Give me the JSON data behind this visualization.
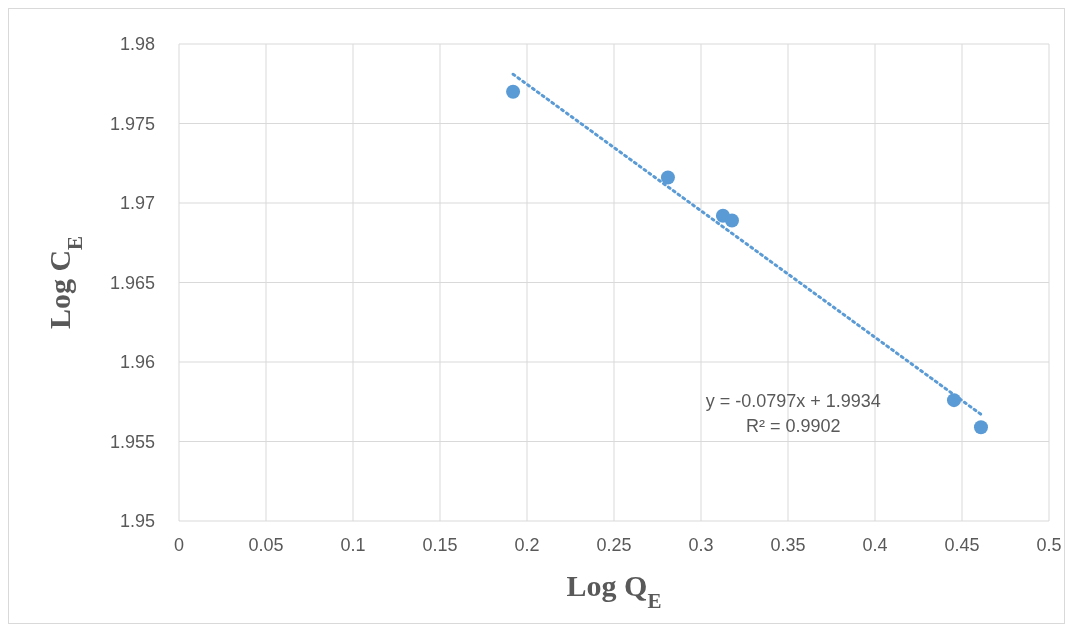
{
  "chart_data": {
    "type": "scatter",
    "xlabel": "Log Q$_{E}$",
    "ylabel": "Log C$_{E}$",
    "xlim": [
      0,
      0.5
    ],
    "xticks": [
      0,
      0.05,
      0.1,
      0.15,
      0.2,
      0.25,
      0.3,
      0.35,
      0.4,
      0.45,
      0.5
    ],
    "ylim": [
      1.95,
      1.98
    ],
    "yticks": [
      1.95,
      1.955,
      1.96,
      1.965,
      1.97,
      1.975,
      1.98
    ],
    "grid": true,
    "series": [
      {
        "color": "#5b9bd5",
        "marker": "circle",
        "x": [
          0.192,
          0.281,
          0.3126,
          0.3178,
          0.4454,
          0.4609
        ],
        "values": [
          1.977,
          1.9716,
          1.9692,
          1.9689,
          1.9576,
          1.9559
        ]
      },
      {
        "type": "line",
        "color": "#5b9bd5",
        "marker": "none",
        "line_style": "dotted",
        "x": [
          0.192,
          0.461
        ],
        "values": [
          1.9781,
          1.9567
        ]
      }
    ],
    "annotations": [
      "y = -0.0797x + 1.9934",
      "R² = 0.9902"
    ]
  }
}
